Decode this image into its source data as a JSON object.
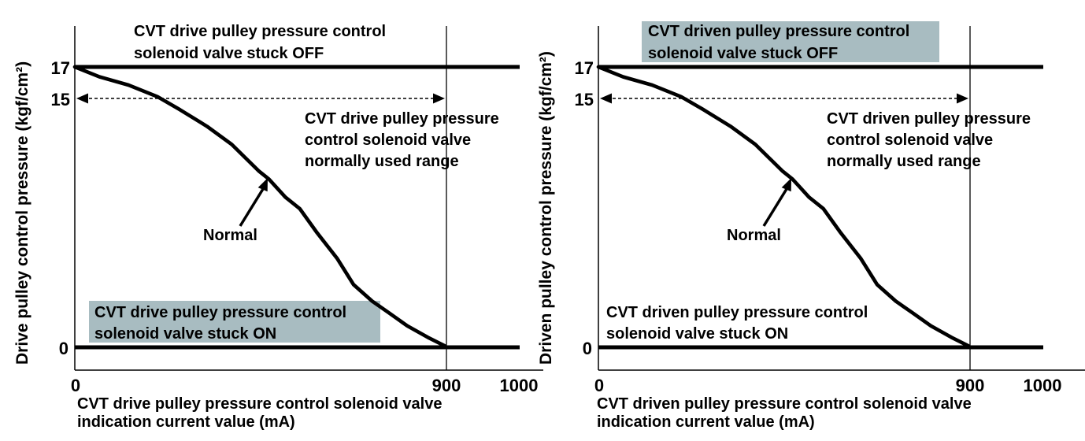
{
  "colors": {
    "highlight": "#a8bcc1",
    "line": "#000000",
    "text": "#000000",
    "background": "#ffffff"
  },
  "charts": [
    {
      "name": "drive-pulley-chart",
      "y_axis_label": "Drive pulley control pressure (kgf/cm²)",
      "x_axis_label_lines": [
        "CVT drive pulley pressure control solenoid valve",
        "indication current value (mA)"
      ],
      "y_ticks": {
        "t17": "17",
        "t15": "15",
        "t0": "0"
      },
      "x_ticks": {
        "t0": "0",
        "t900": "900",
        "t1000": "1000"
      },
      "stuck_off_lines": [
        "CVT drive pulley pressure control",
        "solenoid valve stuck OFF"
      ],
      "stuck_on_lines": [
        "CVT drive pulley pressure control",
        "solenoid valve stuck ON"
      ],
      "normal_range_lines": [
        "CVT drive pulley pressure",
        "control solenoid valve",
        "normally used range"
      ],
      "normal_label": "Normal"
    },
    {
      "name": "driven-pulley-chart",
      "y_axis_label": "Driven pulley control pressure (kgf/cm²)",
      "x_axis_label_lines": [
        "CVT driven pulley pressure control solenoid valve",
        "indication current value (mA)"
      ],
      "y_ticks": {
        "t17": "17",
        "t15": "15",
        "t0": "0"
      },
      "x_ticks": {
        "t0": "0",
        "t900": "900",
        "t1000": "1000"
      },
      "stuck_off_lines": [
        "CVT driven pulley pressure control",
        "solenoid valve stuck OFF"
      ],
      "stuck_on_lines": [
        "CVT driven pulley pressure control",
        "solenoid valve stuck ON"
      ],
      "normal_range_lines": [
        "CVT driven pulley pressure",
        "control solenoid valve",
        "normally used range"
      ],
      "normal_label": "Normal"
    }
  ],
  "chart_data": [
    {
      "type": "line",
      "xlabel": "CVT drive pulley pressure control solenoid valve indication current value (mA)",
      "ylabel": "Drive pulley control pressure (kgf/cm²)",
      "x": [
        0,
        60,
        130,
        200,
        255,
        320,
        380,
        445,
        470,
        510,
        545,
        585,
        635,
        675,
        720,
        760,
        805,
        855,
        895,
        900
      ],
      "series": [
        {
          "name": "Normal",
          "values": [
            17,
            16.4,
            15.9,
            15.2,
            14.4,
            13.4,
            12.3,
            10.7,
            10.2,
            9.1,
            8.4,
            7.0,
            5.4,
            3.8,
            2.8,
            2.1,
            1.3,
            0.6,
            0.1,
            0
          ]
        }
      ],
      "xticks": [
        0,
        900,
        1000
      ],
      "yticks": [
        0,
        15,
        17
      ],
      "xlim": [
        0,
        1100
      ],
      "ylim": [
        0,
        19.5
      ],
      "grid": false,
      "legend": false,
      "reference_lines": [
        {
          "label": "CVT drive pulley pressure control solenoid valve stuck OFF",
          "pressure": 17
        },
        {
          "label": "CVT drive pulley pressure control solenoid valve stuck ON",
          "pressure": 0
        },
        {
          "label": "normally used range upper limit",
          "current": 900
        }
      ],
      "annotations": [
        {
          "text": "Normal",
          "points_to": "curve"
        },
        {
          "text": "CVT drive pulley pressure control solenoid valve normally used range",
          "range_mA": [
            0,
            900
          ],
          "at_pressure": 15
        }
      ]
    },
    {
      "type": "line",
      "xlabel": "CVT driven pulley pressure control solenoid valve indication current value (mA)",
      "ylabel": "Driven pulley control pressure (kgf/cm²)",
      "x": [
        0,
        60,
        130,
        200,
        255,
        320,
        380,
        445,
        470,
        510,
        545,
        585,
        635,
        675,
        720,
        760,
        805,
        855,
        895,
        900
      ],
      "series": [
        {
          "name": "Normal",
          "values": [
            17,
            16.4,
            15.9,
            15.2,
            14.4,
            13.4,
            12.3,
            10.7,
            10.2,
            9.1,
            8.4,
            7.0,
            5.4,
            3.8,
            2.8,
            2.1,
            1.3,
            0.6,
            0.1,
            0
          ]
        }
      ],
      "xticks": [
        0,
        900,
        1000
      ],
      "yticks": [
        0,
        15,
        17
      ],
      "xlim": [
        0,
        1100
      ],
      "ylim": [
        0,
        19.5
      ],
      "grid": false,
      "legend": false,
      "reference_lines": [
        {
          "label": "CVT driven pulley pressure control solenoid valve stuck OFF",
          "pressure": 17
        },
        {
          "label": "CVT driven pulley pressure control solenoid valve stuck ON",
          "pressure": 0
        },
        {
          "label": "normally used range upper limit",
          "current": 900
        }
      ],
      "annotations": [
        {
          "text": "Normal",
          "points_to": "curve"
        },
        {
          "text": "CVT driven pulley pressure control solenoid valve normally used range",
          "range_mA": [
            0,
            900
          ],
          "at_pressure": 15
        }
      ]
    }
  ]
}
